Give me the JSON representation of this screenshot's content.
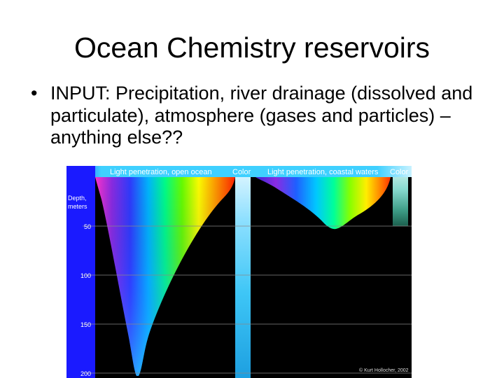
{
  "title": "Ocean Chemistry reservoirs",
  "bullets": [
    {
      "marker": "•",
      "text": "INPUT:  Precipitation, river drainage (dissolved and particulate), atmosphere (gases and particles) – anything else??"
    }
  ],
  "figure": {
    "header_open_ocean": "Light penetration, open ocean",
    "header_color_1": "Color",
    "header_coastal": "Light penetration, coastal waters",
    "header_color_2": "Color",
    "depth_label_line1": "Depth,",
    "depth_label_line2": "meters",
    "depth_ticks": [
      "50",
      "100",
      "150",
      "200"
    ],
    "credit": "© Kurt Hollocher, 2002",
    "colors": {
      "axis_band": "#1a1aff",
      "background": "#000000",
      "open_ocean_color_strip": [
        "#dff6ff",
        "#7fdcff",
        "#3cc8f8",
        "#1fa8e8"
      ],
      "coastal_color_strip": [
        "#ccf0ee",
        "#7fd6cc",
        "#3a9a84",
        "#1f6a55"
      ]
    }
  }
}
